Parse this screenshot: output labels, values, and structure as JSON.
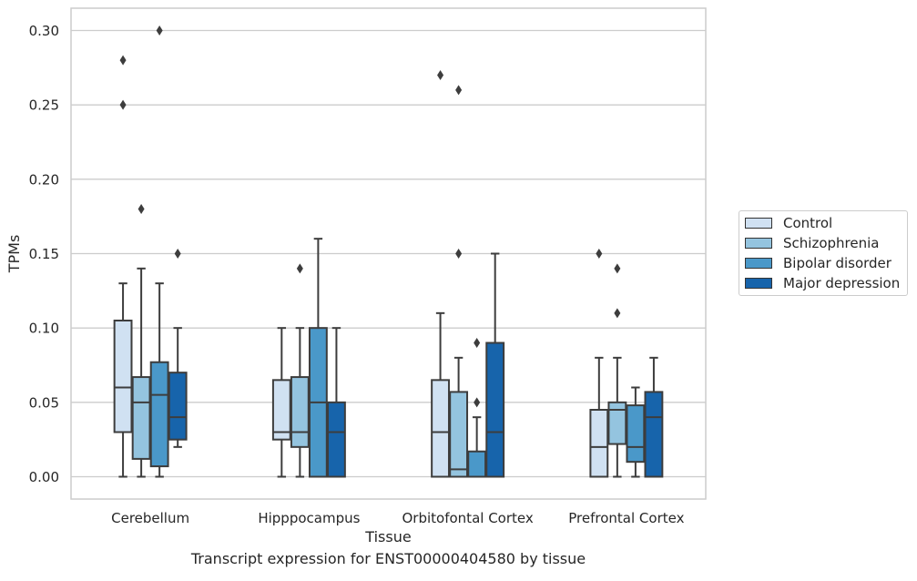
{
  "chart_data": {
    "type": "box",
    "ylabel": "TPMs",
    "xlabel": "Tissue",
    "caption": "Transcript expression for ENST00000404580 by tissue",
    "ylim": [
      -0.015,
      0.315
    ],
    "yticks": [
      0.0,
      0.05,
      0.1,
      0.15,
      0.2,
      0.25,
      0.3
    ],
    "ytick_labels": [
      "0.00",
      "0.05",
      "0.10",
      "0.15",
      "0.20",
      "0.25",
      "0.30"
    ],
    "grid": true,
    "legend_placement": "right",
    "categories": [
      "Cerebellum",
      "Hipppocampus",
      "Orbitofontal Cortex",
      "Prefrontal Cortex"
    ],
    "series": [
      {
        "name": "Control",
        "color": "#d0e1f2",
        "boxes": [
          {
            "min": 0.0,
            "q1": 0.03,
            "median": 0.06,
            "q3": 0.105,
            "max": 0.13,
            "outliers": [
              0.25,
              0.28
            ]
          },
          {
            "min": 0.0,
            "q1": 0.025,
            "median": 0.03,
            "q3": 0.065,
            "max": 0.1,
            "outliers": []
          },
          {
            "min": 0.0,
            "q1": 0.0,
            "median": 0.03,
            "q3": 0.065,
            "max": 0.11,
            "outliers": [
              0.27
            ]
          },
          {
            "min": 0.0,
            "q1": 0.0,
            "median": 0.02,
            "q3": 0.045,
            "max": 0.08,
            "outliers": [
              0.15
            ]
          }
        ]
      },
      {
        "name": "Schizophrenia",
        "color": "#94c4df",
        "boxes": [
          {
            "min": 0.0,
            "q1": 0.012,
            "median": 0.05,
            "q3": 0.067,
            "max": 0.14,
            "outliers": [
              0.18
            ]
          },
          {
            "min": 0.0,
            "q1": 0.02,
            "median": 0.03,
            "q3": 0.067,
            "max": 0.1,
            "outliers": [
              0.14
            ]
          },
          {
            "min": 0.0,
            "q1": 0.0,
            "median": 0.005,
            "q3": 0.057,
            "max": 0.08,
            "outliers": [
              0.15,
              0.26
            ]
          },
          {
            "min": 0.0,
            "q1": 0.022,
            "median": 0.045,
            "q3": 0.05,
            "max": 0.08,
            "outliers": [
              0.11,
              0.14
            ]
          }
        ]
      },
      {
        "name": "Bipolar disorder",
        "color": "#4a98c9",
        "boxes": [
          {
            "min": 0.0,
            "q1": 0.007,
            "median": 0.055,
            "q3": 0.077,
            "max": 0.13,
            "outliers": [
              0.3
            ]
          },
          {
            "min": 0.0,
            "q1": 0.0,
            "median": 0.05,
            "q3": 0.1,
            "max": 0.16,
            "outliers": []
          },
          {
            "min": 0.0,
            "q1": 0.0,
            "median": 0.0,
            "q3": 0.017,
            "max": 0.04,
            "outliers": [
              0.05,
              0.09
            ]
          },
          {
            "min": 0.0,
            "q1": 0.01,
            "median": 0.02,
            "q3": 0.048,
            "max": 0.06,
            "outliers": []
          }
        ]
      },
      {
        "name": "Major depression",
        "color": "#1764ab",
        "boxes": [
          {
            "min": 0.02,
            "q1": 0.025,
            "median": 0.04,
            "q3": 0.07,
            "max": 0.1,
            "outliers": [
              0.15
            ]
          },
          {
            "min": 0.0,
            "q1": 0.0,
            "median": 0.03,
            "q3": 0.05,
            "max": 0.1,
            "outliers": []
          },
          {
            "min": 0.0,
            "q1": 0.0,
            "median": 0.03,
            "q3": 0.09,
            "max": 0.15,
            "outliers": []
          },
          {
            "min": 0.0,
            "q1": 0.0,
            "median": 0.04,
            "q3": 0.057,
            "max": 0.08,
            "outliers": []
          }
        ]
      }
    ]
  }
}
